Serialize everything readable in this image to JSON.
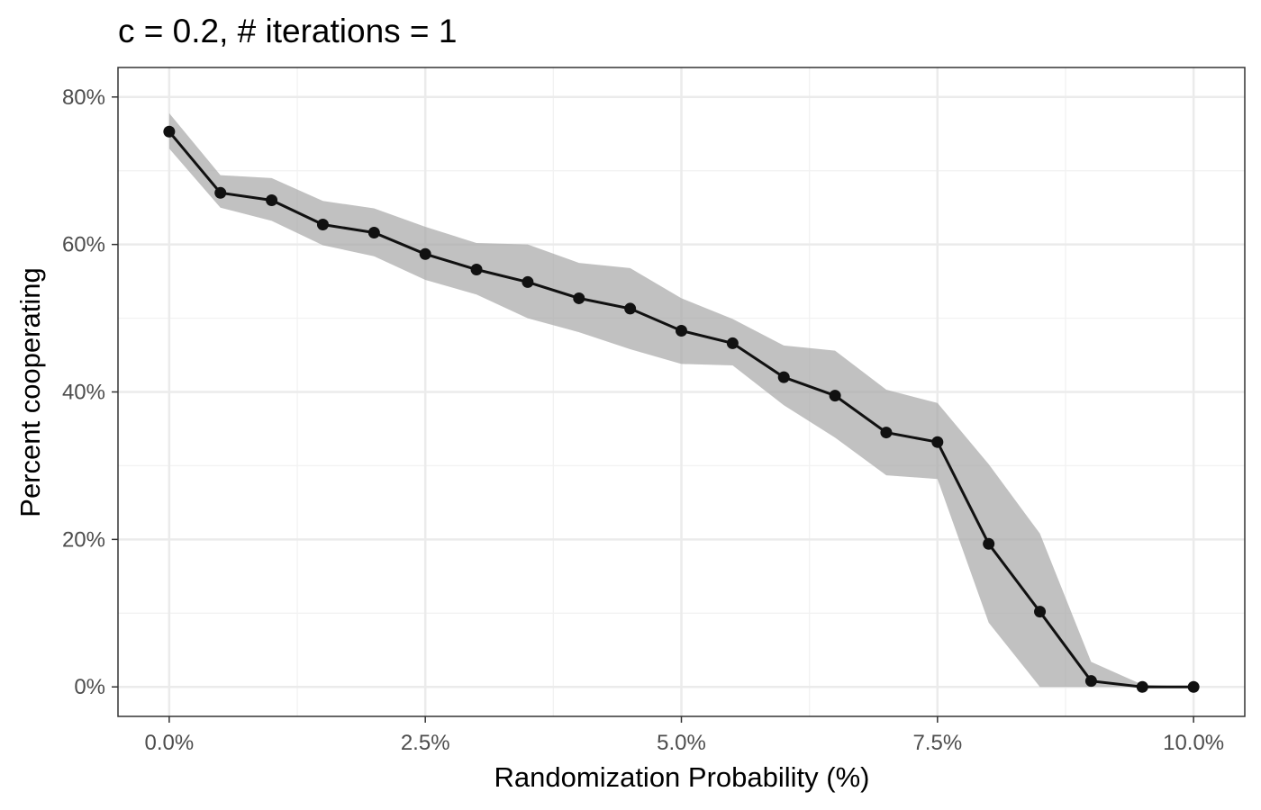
{
  "chart_data": {
    "type": "line",
    "title": "c = 0.2, # iterations = 1",
    "xlabel": "Randomization Probability (%)",
    "ylabel": "Percent cooperating",
    "xlim": [
      -0.5,
      10.5
    ],
    "ylim": [
      -4,
      84
    ],
    "x_ticks": [
      0,
      2.5,
      5,
      7.5,
      10
    ],
    "x_tick_labels": [
      "0.0%",
      "2.5%",
      "5.0%",
      "7.5%",
      "10.0%"
    ],
    "y_ticks": [
      0,
      20,
      40,
      60,
      80
    ],
    "y_tick_labels": [
      "0%",
      "20%",
      "40%",
      "60%",
      "80%"
    ],
    "grid": true,
    "legend": "none",
    "x": [
      0,
      0.5,
      1,
      1.5,
      2,
      2.5,
      3,
      3.5,
      4,
      4.5,
      5,
      5.5,
      6,
      6.5,
      7,
      7.5,
      8,
      8.5,
      9,
      9.5,
      10
    ],
    "y": [
      75.3,
      67.0,
      66.0,
      62.7,
      61.6,
      58.7,
      56.6,
      54.9,
      52.7,
      51.3,
      48.3,
      46.6,
      42.0,
      39.5,
      34.5,
      33.2,
      19.4,
      10.2,
      0.8,
      0.0,
      0.0
    ],
    "lower": [
      73.0,
      65.0,
      63.2,
      59.9,
      58.4,
      55.2,
      53.2,
      50.0,
      48.1,
      45.8,
      43.8,
      43.6,
      38.2,
      33.8,
      28.7,
      28.2,
      8.7,
      0.0,
      0.0,
      0.0,
      0.0
    ],
    "upper": [
      77.8,
      69.4,
      69.0,
      65.9,
      64.9,
      62.4,
      60.2,
      60.0,
      57.5,
      56.8,
      52.7,
      49.9,
      46.3,
      45.6,
      40.3,
      38.5,
      30.2,
      20.8,
      3.4,
      0.3,
      0.0
    ],
    "colors": {
      "line": "#111111",
      "ribbon": "#a6a6a6",
      "grid_major": "#ebebeb",
      "grid_minor": "#f2f2f2",
      "tick_label": "#4d4d4d"
    }
  }
}
